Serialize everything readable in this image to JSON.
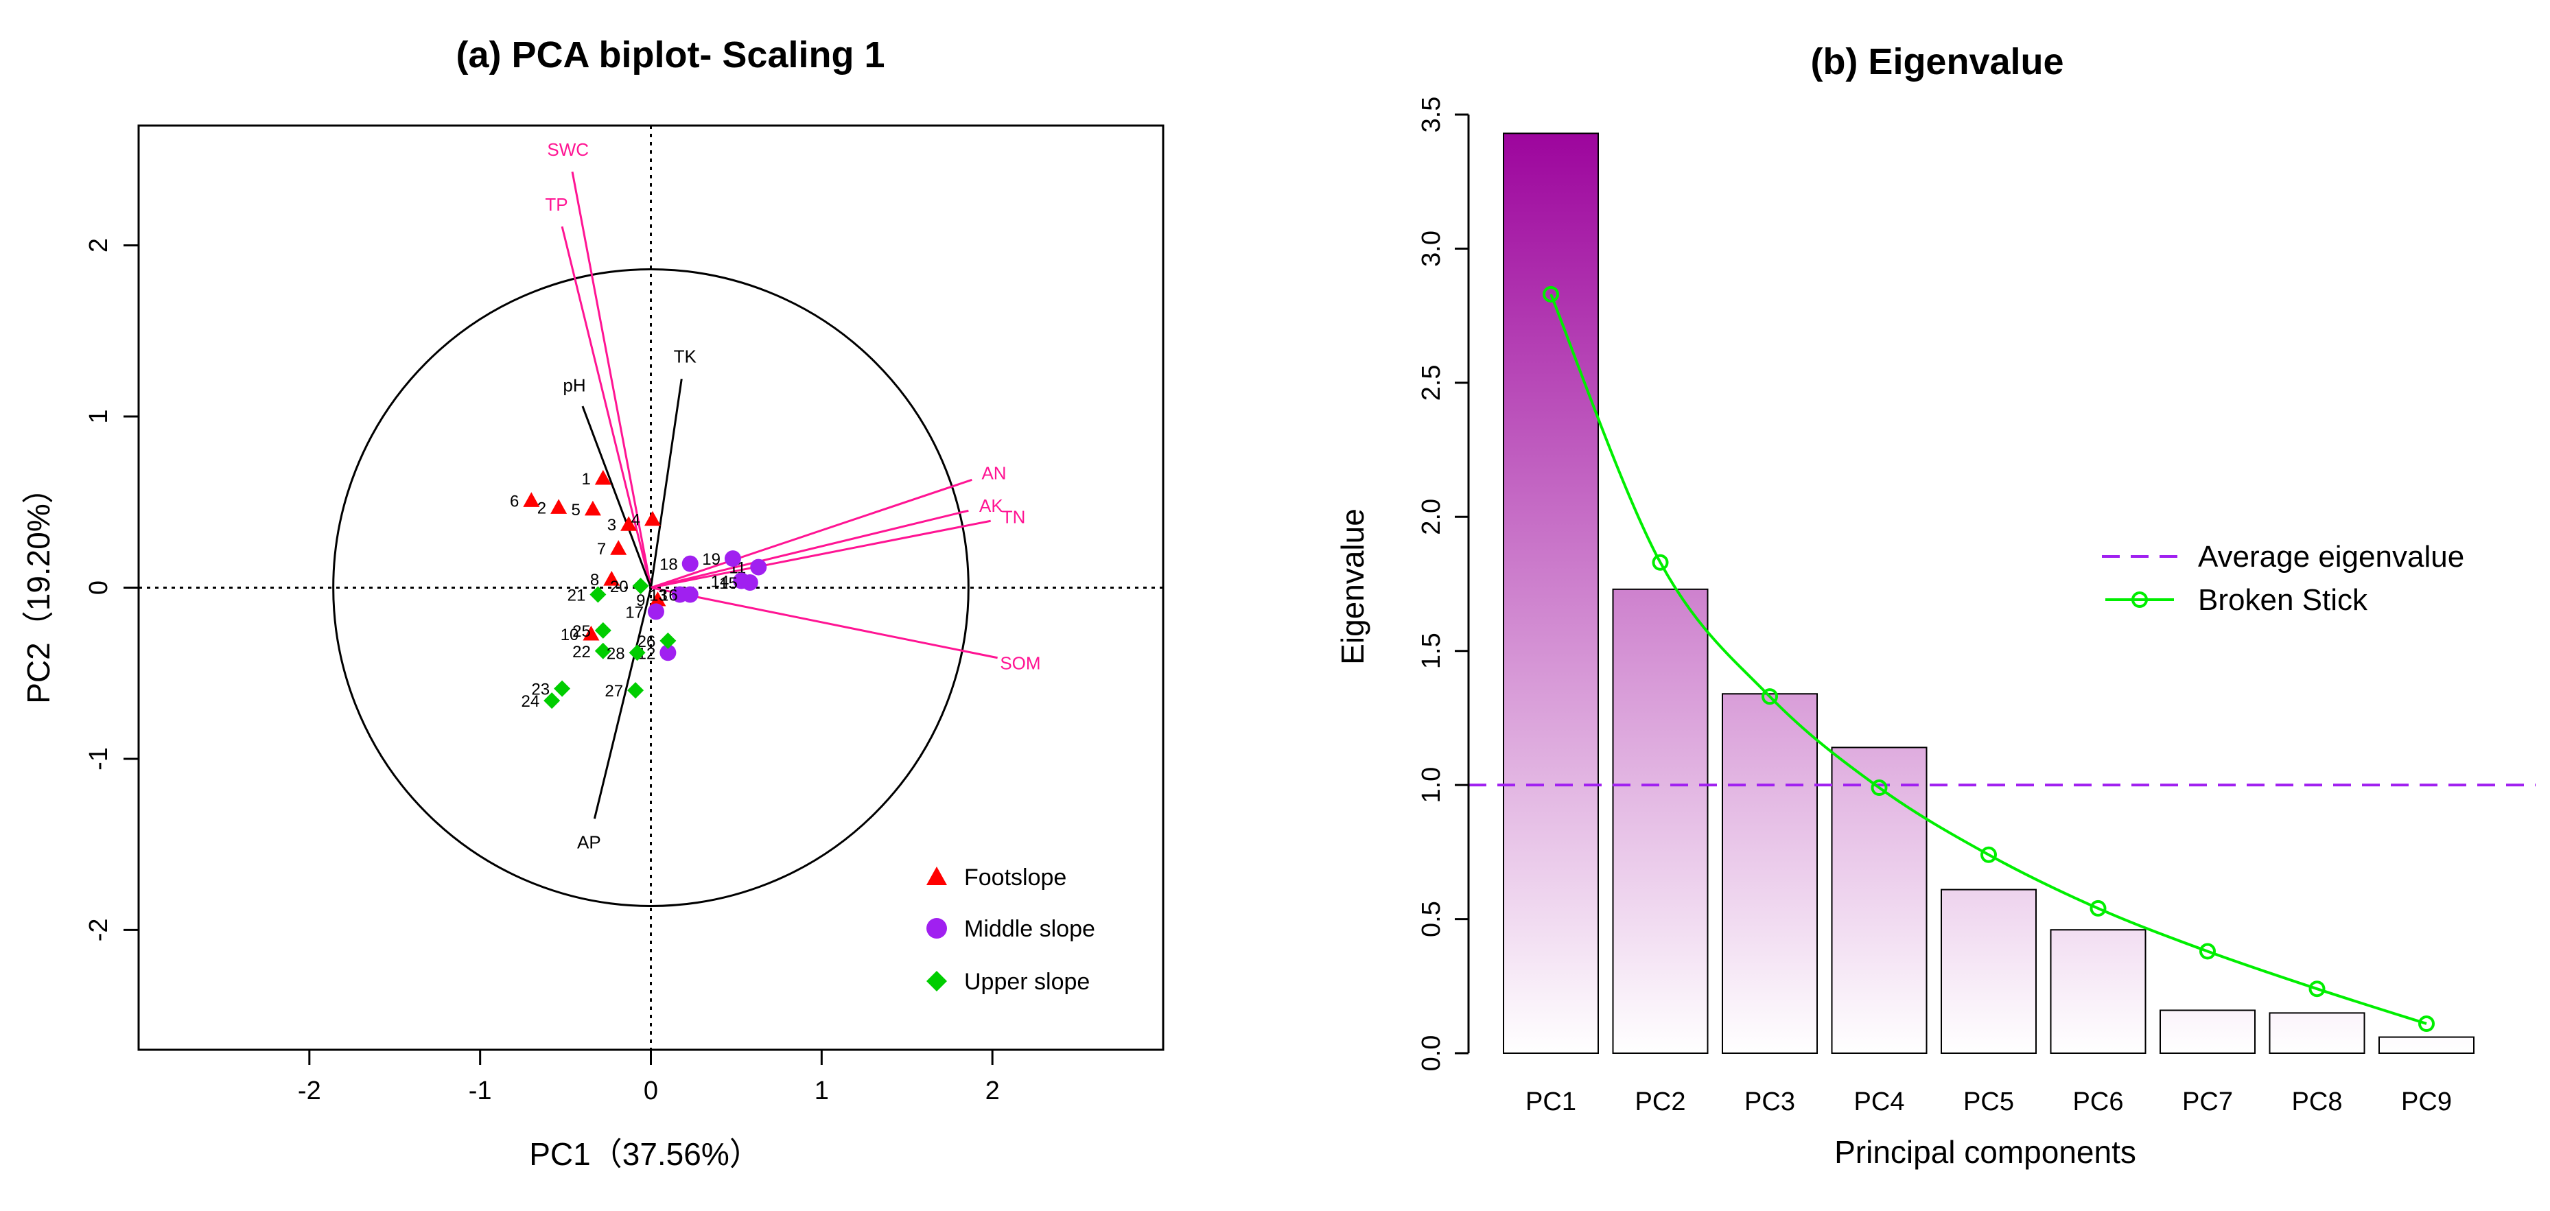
{
  "chart_data": [
    {
      "type": "scatter",
      "title": "(a) PCA biplot- Scaling 1",
      "xlabel": "PC1（37.56%）",
      "ylabel": "PC2（19.20%）",
      "xlim": [
        -3,
        3
      ],
      "ylim": [
        -2.7,
        2.7
      ],
      "xticks": [
        -2,
        -1,
        0,
        1,
        2
      ],
      "yticks": [
        -2,
        -1,
        0,
        1,
        2
      ],
      "reference_lines": [
        0
      ],
      "circle_radius": 1.86,
      "legend": [
        {
          "label": "Footslope",
          "marker": "triangle",
          "color": "#ff0000"
        },
        {
          "label": "Middle slope",
          "marker": "circle",
          "color": "#a020f0"
        },
        {
          "label": "Upper slope",
          "marker": "diamond",
          "color": "#00cd00"
        }
      ],
      "vectors": [
        {
          "label": "SWC",
          "x": -0.46,
          "y": 2.43,
          "color": "#ff1493"
        },
        {
          "label": "TP",
          "x": -0.52,
          "y": 2.11,
          "color": "#ff1493"
        },
        {
          "label": "TK",
          "x": 0.18,
          "y": 1.22,
          "color": "#000000"
        },
        {
          "label": "pH",
          "x": -0.4,
          "y": 1.06,
          "color": "#000000"
        },
        {
          "label": "AN",
          "x": 1.88,
          "y": 0.63,
          "color": "#ff1493"
        },
        {
          "label": "AK",
          "x": 1.86,
          "y": 0.45,
          "color": "#ff1493"
        },
        {
          "label": "TN",
          "x": 1.99,
          "y": 0.39,
          "color": "#ff1493"
        },
        {
          "label": "SOM",
          "x": 2.03,
          "y": -0.41,
          "color": "#ff1493"
        },
        {
          "label": "AP",
          "x": -0.33,
          "y": -1.35,
          "color": "#000000"
        }
      ],
      "series": [
        {
          "name": "Footslope",
          "points": [
            {
              "label": "1",
              "x": -0.28,
              "y": 0.64
            },
            {
              "label": "2",
              "x": -0.54,
              "y": 0.47
            },
            {
              "label": "3",
              "x": -0.13,
              "y": 0.37
            },
            {
              "label": "4",
              "x": 0.01,
              "y": 0.4
            },
            {
              "label": "5",
              "x": -0.34,
              "y": 0.46
            },
            {
              "label": "6",
              "x": -0.7,
              "y": 0.51
            },
            {
              "label": "7",
              "x": -0.19,
              "y": 0.23
            },
            {
              "label": "8",
              "x": -0.23,
              "y": 0.05
            },
            {
              "label": "9",
              "x": 0.04,
              "y": -0.07
            },
            {
              "label": "10",
              "x": -0.35,
              "y": -0.27
            }
          ]
        },
        {
          "name": "Middle slope",
          "points": [
            {
              "label": "11",
              "x": 0.63,
              "y": 0.12
            },
            {
              "label": "12",
              "x": 0.1,
              "y": -0.38
            },
            {
              "label": "13",
              "x": 0.17,
              "y": -0.04
            },
            {
              "label": "14",
              "x": 0.53,
              "y": 0.04
            },
            {
              "label": "15",
              "x": 0.58,
              "y": 0.03
            },
            {
              "label": "16",
              "x": 0.23,
              "y": -0.04
            },
            {
              "label": "17",
              "x": 0.03,
              "y": -0.14
            },
            {
              "label": "18",
              "x": 0.23,
              "y": 0.14
            },
            {
              "label": "19",
              "x": 0.48,
              "y": 0.17
            }
          ]
        },
        {
          "name": "Upper slope",
          "points": [
            {
              "label": "20",
              "x": -0.06,
              "y": 0.01
            },
            {
              "label": "21",
              "x": -0.31,
              "y": -0.04
            },
            {
              "label": "22",
              "x": -0.28,
              "y": -0.37
            },
            {
              "label": "23",
              "x": -0.52,
              "y": -0.59
            },
            {
              "label": "24",
              "x": -0.58,
              "y": -0.66
            },
            {
              "label": "25",
              "x": -0.28,
              "y": -0.25
            },
            {
              "label": "26",
              "x": 0.1,
              "y": -0.31
            },
            {
              "label": "27",
              "x": -0.09,
              "y": -0.6
            },
            {
              "label": "28",
              "x": -0.08,
              "y": -0.38
            }
          ]
        }
      ]
    },
    {
      "type": "bar",
      "title": "(b) Eigenvalue",
      "xlabel": "Principal components",
      "ylabel": "Eigenvalue",
      "ylim": [
        0,
        3.5
      ],
      "yticks": [
        "0.0",
        "0.5",
        "1.0",
        "1.5",
        "2.0",
        "2.5",
        "3.0",
        "3.5"
      ],
      "categories": [
        "PC1",
        "PC2",
        "PC3",
        "PC4",
        "PC5",
        "PC6",
        "PC7",
        "PC8",
        "PC9"
      ],
      "values": [
        3.43,
        1.73,
        1.34,
        1.14,
        0.61,
        0.46,
        0.16,
        0.15,
        0.06
      ],
      "bar_color": "#9b009b",
      "average_eigenvalue": 1.0,
      "average_color": "#a020f0",
      "broken_stick": [
        2.83,
        1.83,
        1.33,
        0.99,
        0.74,
        0.54,
        0.38,
        0.24,
        0.11
      ],
      "broken_stick_color": "#00ee00",
      "legend": [
        {
          "label": "Average eigenvalue",
          "style": "dashed"
        },
        {
          "label": "Broken Stick",
          "style": "line-circle"
        }
      ]
    }
  ]
}
